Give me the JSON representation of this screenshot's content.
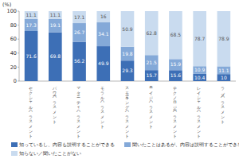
{
  "chart_data": {
    "type": "bar",
    "stacked": true,
    "data_labels": true,
    "grid": false,
    "legend": "bottom",
    "ylabel": "(%)",
    "categories": [
      "セクシャル・ハラスメント",
      "パワー・ハラスメント",
      "マタニティ・ハラスメント",
      "モラル・ハラスメント",
      "スモーキング・ハラスメント",
      "エイジ・ハラスメント",
      "テクノロジー・ハラスメント",
      "レイシャル・ハラスメント",
      "ラブ・ハラスメント"
    ],
    "series": [
      {
        "name": "知っているし、内容も説明することができる",
        "color": "#3d6fb6",
        "values": [
          71.6,
          69.8,
          56.2,
          49.9,
          29.3,
          15.7,
          15.6,
          10.4,
          10.0
        ]
      },
      {
        "name": "聞いたことはあるが、内容は説明することができない",
        "color": "#84a9d8",
        "values": [
          17.3,
          19.1,
          26.7,
          34.1,
          19.8,
          21.5,
          15.9,
          10.9,
          11.1
        ]
      },
      {
        "name": "知らない／聞いたことがない",
        "color": "#c9dbef",
        "values": [
          11.1,
          11.1,
          17.1,
          16.0,
          50.9,
          62.8,
          68.5,
          78.7,
          78.9
        ]
      }
    ],
    "ylim": [
      0,
      100
    ],
    "yticks": [
      0,
      20,
      40,
      60,
      80,
      100
    ]
  }
}
